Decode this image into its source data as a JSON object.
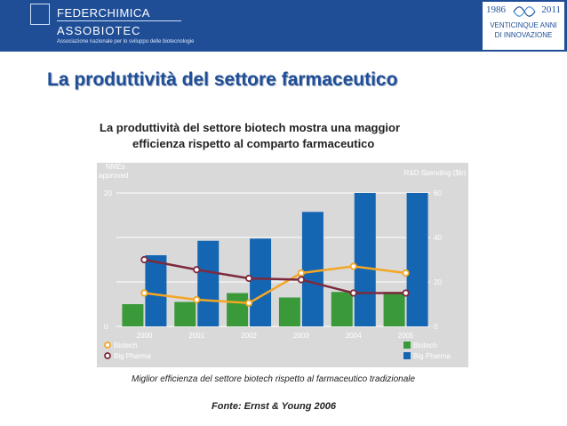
{
  "header": {
    "org_line1": "FEDERCHIMICA",
    "org_line2": "ASSOBIOTEC",
    "org_tagline": "Associazione nazionale per lo sviluppo delle biotecnologie",
    "badge": {
      "year_start": "1986",
      "year_end": "2011",
      "line1": "VENTICINQUE ANNI",
      "line2": "DI INNOVAZIONE"
    }
  },
  "title": "La produttività del settore farmaceutico",
  "subtitle_line1": "La produttività del settore biotech mostra una maggior",
  "subtitle_line2": "efficienza rispetto al comparto farmaceutico",
  "caption": "Miglior efficienza del settore biotech rispetto al farmaceutico tradizionale",
  "source": "Fonte: Ernst & Young 2006",
  "colors": {
    "header_bg": "#1f4e97",
    "chart_bg": "#d9d9da",
    "biotech_bar": "#3a9a3a",
    "bigpharma_bar": "#1466b3",
    "biotech_line": "#f5a623",
    "bigpharma_line": "#7d2a3c"
  },
  "chart_data": {
    "type": "bar",
    "categories": [
      "2000",
      "2001",
      "2002",
      "2003",
      "2004",
      "2005"
    ],
    "left_axis_label": "NMEs approved",
    "right_axis_label": "R&D Spending ($b)",
    "left_ylim": [
      0,
      20
    ],
    "right_ylim": [
      0,
      60
    ],
    "left_ticks": [
      "0",
      "20"
    ],
    "right_ticks": [
      "0",
      "20",
      "40",
      "60"
    ],
    "grid": true,
    "bar_series": [
      {
        "name": "Biotech",
        "axis": "right",
        "values": [
          10,
          11,
          15,
          13,
          15.5,
          15.5
        ]
      },
      {
        "name": "Big Pharma",
        "axis": "right",
        "values": [
          32,
          38.5,
          39.5,
          51.5,
          60,
          60
        ]
      }
    ],
    "line_series": [
      {
        "name": "Biotech",
        "axis": "left",
        "values": [
          5,
          4,
          3.5,
          8,
          9,
          8
        ]
      },
      {
        "name": "Big Pharma",
        "axis": "left",
        "values": [
          10,
          8.5,
          7.2,
          7,
          5,
          5
        ]
      }
    ]
  }
}
